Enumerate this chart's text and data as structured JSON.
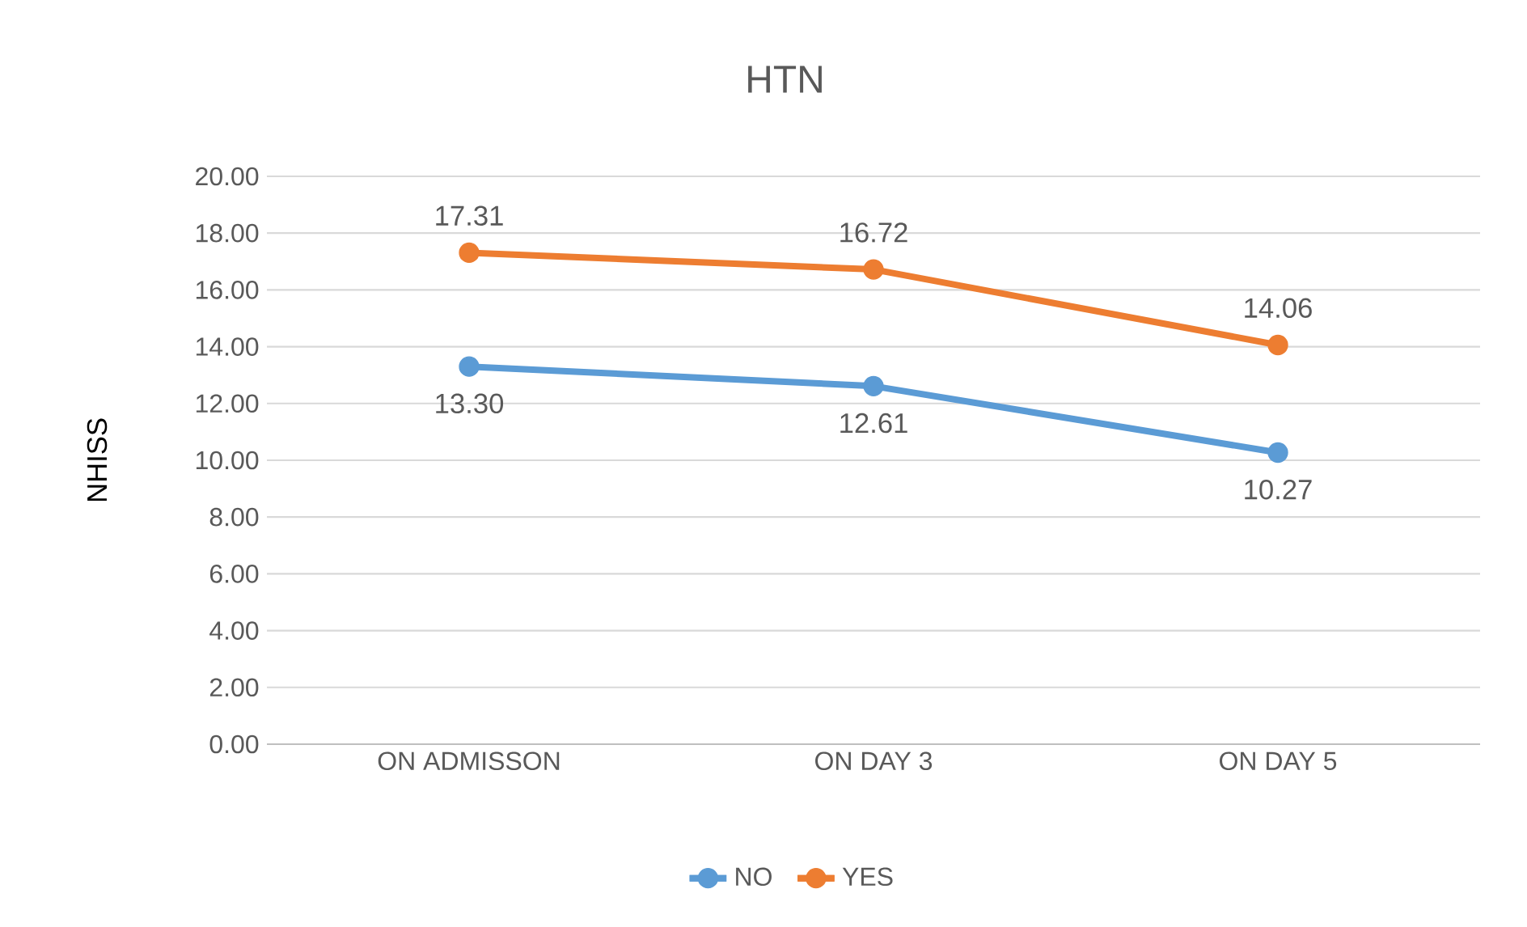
{
  "chart_data": {
    "type": "line",
    "title": "HTN",
    "ylabel": "NHISS",
    "categories": [
      "ON ADMISSON",
      "ON DAY 3",
      "ON DAY 5"
    ],
    "series": [
      {
        "name": "NO",
        "color": "#5b9bd5",
        "values": [
          13.3,
          12.61,
          10.27
        ],
        "value_labels": [
          "13.30",
          "12.61",
          "10.27"
        ]
      },
      {
        "name": "YES",
        "color": "#ed7d31",
        "values": [
          17.31,
          16.72,
          14.06
        ],
        "value_labels": [
          "17.31",
          "16.72",
          "14.06"
        ]
      }
    ],
    "ylim": [
      0,
      20
    ],
    "yticks": [
      {
        "value": 0,
        "label": "0.00"
      },
      {
        "value": 2,
        "label": "2.00"
      },
      {
        "value": 4,
        "label": "4.00"
      },
      {
        "value": 6,
        "label": "6.00"
      },
      {
        "value": 8,
        "label": "8.00"
      },
      {
        "value": 10,
        "label": "10.00"
      },
      {
        "value": 12,
        "label": "12.00"
      },
      {
        "value": 14,
        "label": "14.00"
      },
      {
        "value": 16,
        "label": "16.00"
      },
      {
        "value": 18,
        "label": "18.00"
      },
      {
        "value": 20,
        "label": "20.00"
      }
    ],
    "grid": "y",
    "legend": "bottom",
    "marker": "circle",
    "line_style": "solid"
  }
}
